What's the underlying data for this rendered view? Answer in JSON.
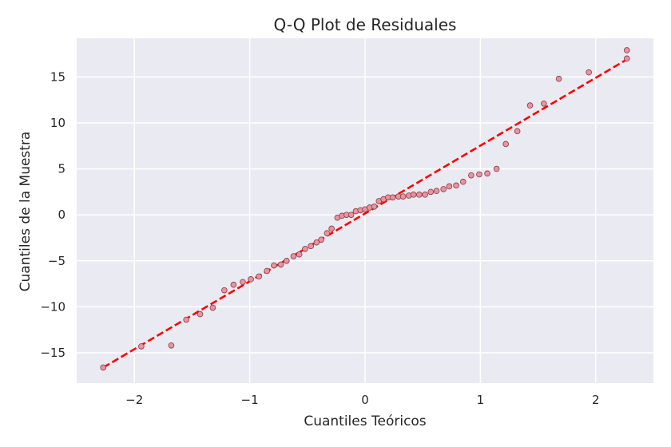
{
  "chart_data": {
    "type": "scatter",
    "title": "Q-Q Plot de Residuales",
    "xlabel": "Cuantiles Teóricos",
    "ylabel": "Cuantiles de la Muestra",
    "xlim": [
      -2.5,
      2.5
    ],
    "ylim": [
      -18.3,
      19.2
    ],
    "xticks": [
      -2,
      -1,
      0,
      1,
      2
    ],
    "xtick_labels": [
      "−2",
      "−1",
      "0",
      "1",
      "2"
    ],
    "yticks": [
      -15,
      -10,
      -5,
      0,
      5,
      10,
      15
    ],
    "ytick_labels": [
      "−15",
      "−10",
      "−5",
      "0",
      "5",
      "10",
      "15"
    ],
    "grid": true,
    "background": "#eaeaf2",
    "grid_color": "#ffffff",
    "point_color": "#e8949f",
    "point_edge_color": "#8a3a44",
    "line_color": "#ff0000",
    "series": [
      {
        "values": [
          [
            -2.27,
            -16.6
          ],
          [
            -1.94,
            -14.3
          ],
          [
            -1.68,
            -14.2
          ],
          [
            -1.55,
            -11.4
          ],
          [
            -1.43,
            -10.8
          ],
          [
            -1.32,
            -10.1
          ],
          [
            -1.22,
            -8.2
          ],
          [
            -1.14,
            -7.6
          ],
          [
            -1.06,
            -7.3
          ],
          [
            -0.99,
            -7.0
          ],
          [
            -0.92,
            -6.7
          ],
          [
            -0.85,
            -6.1
          ],
          [
            -0.79,
            -5.5
          ],
          [
            -0.73,
            -5.4
          ],
          [
            -0.68,
            -5.0
          ],
          [
            -0.62,
            -4.5
          ],
          [
            -0.57,
            -4.3
          ],
          [
            -0.52,
            -3.7
          ],
          [
            -0.47,
            -3.4
          ],
          [
            -0.42,
            -3.0
          ],
          [
            -0.38,
            -2.7
          ],
          [
            -0.33,
            -2.0
          ],
          [
            -0.29,
            -1.5
          ],
          [
            -0.24,
            -0.3
          ],
          [
            -0.2,
            -0.1
          ],
          [
            -0.16,
            0.0
          ],
          [
            -0.12,
            0.0
          ],
          [
            -0.08,
            0.4
          ],
          [
            -0.04,
            0.5
          ],
          [
            0.0,
            0.6
          ],
          [
            0.04,
            0.8
          ],
          [
            0.08,
            0.9
          ],
          [
            0.12,
            1.5
          ],
          [
            0.16,
            1.7
          ],
          [
            0.2,
            1.9
          ],
          [
            0.24,
            1.9
          ],
          [
            0.29,
            2.0
          ],
          [
            0.33,
            2.0
          ],
          [
            0.38,
            2.1
          ],
          [
            0.42,
            2.2
          ],
          [
            0.47,
            2.2
          ],
          [
            0.52,
            2.2
          ],
          [
            0.57,
            2.5
          ],
          [
            0.62,
            2.6
          ],
          [
            0.68,
            2.8
          ],
          [
            0.73,
            3.1
          ],
          [
            0.79,
            3.2
          ],
          [
            0.85,
            3.6
          ],
          [
            0.92,
            4.3
          ],
          [
            0.99,
            4.4
          ],
          [
            1.06,
            4.5
          ],
          [
            1.14,
            5.0
          ],
          [
            1.22,
            7.7
          ],
          [
            1.32,
            9.1
          ],
          [
            1.43,
            11.9
          ],
          [
            1.55,
            12.1
          ],
          [
            1.68,
            14.8
          ],
          [
            1.94,
            15.5
          ],
          [
            2.27,
            17.0
          ],
          [
            2.27,
            17.9
          ]
        ]
      }
    ],
    "reference_line": [
      [
        -2.27,
        -16.6
      ],
      [
        2.27,
        16.9
      ]
    ]
  }
}
